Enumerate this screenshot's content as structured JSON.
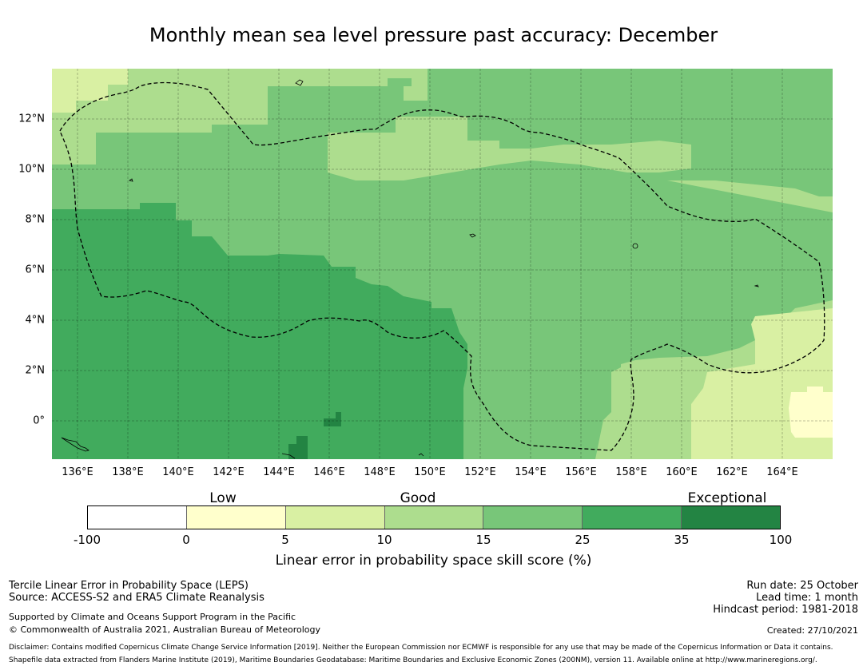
{
  "title": "Monthly mean sea level pressure past accuracy: December",
  "map": {
    "lon_labels": [
      "136°E",
      "138°E",
      "140°E",
      "142°E",
      "144°E",
      "146°E",
      "148°E",
      "150°E",
      "152°E",
      "154°E",
      "156°E",
      "158°E",
      "160°E",
      "162°E",
      "164°E"
    ],
    "lon_values": [
      136,
      138,
      140,
      142,
      144,
      146,
      148,
      150,
      152,
      154,
      156,
      158,
      160,
      162,
      164
    ],
    "lat_labels": [
      "12°N",
      "10°N",
      "8°N",
      "6°N",
      "4°N",
      "2°N",
      "0°"
    ],
    "lat_values": [
      12,
      10,
      8,
      6,
      4,
      2,
      0
    ],
    "lon_range": [
      135,
      166
    ],
    "lat_range": [
      -1.5,
      14
    ]
  },
  "legend": {
    "categories": [
      "Low",
      "Good",
      "Exceptional"
    ],
    "ticks": [
      "-100",
      "0",
      "5",
      "10",
      "15",
      "25",
      "35",
      "100"
    ],
    "colors": [
      "#ffffff",
      "#ffffcc",
      "#d9f0a3",
      "#addd8e",
      "#78c679",
      "#41ab5d",
      "#238443"
    ],
    "title": "Linear error in probability space skill score (%)"
  },
  "footer": {
    "left_line1": "Tercile Linear Error in Probability Space (LEPS)",
    "left_line2": "Source: ACCESS-S2 and ERA5 Climate Reanalysis",
    "support_line1": "Supported by Climate and Oceans Support Program in the Pacific",
    "support_line2": "© Commonwealth of Australia 2021, Australian Bureau of Meteorology",
    "run_date": "Run date: 25 October",
    "lead_time": "Lead time: 1 month",
    "hindcast": "Hindcast period: 1981-2018",
    "created": "Created: 27/10/2021",
    "disclaimer": "Disclaimer: Contains modified Copernicus Climate Change Service Information [2019]. Neither the European Commission nor ECMWF is responsible for any use that may be made of the Copernicus Information or Data it contains.",
    "shapefile": "Shapefile data extracted from Flanders Marine Institute (2019), Maritime Boundaries Geodatabase: Maritime Boundaries and Exclusive Economic Zones (200NM), version 11. Available online at http://www.marineregions.org/."
  }
}
